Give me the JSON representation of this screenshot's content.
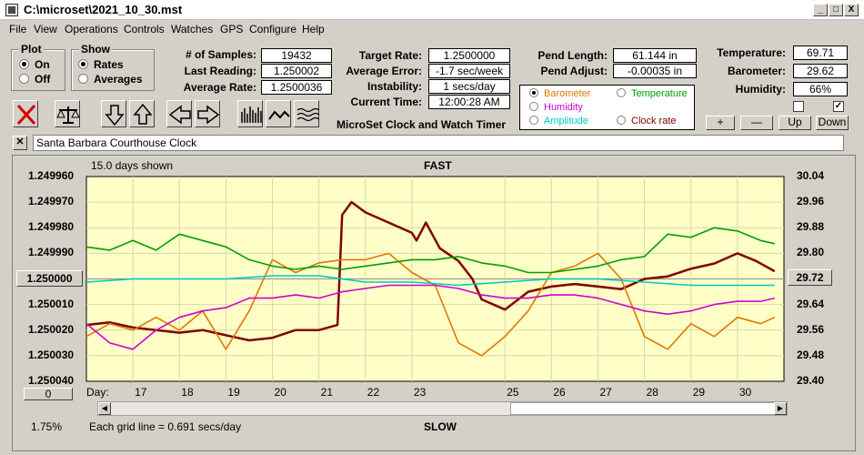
{
  "window": {
    "title": "C:\\microset\\2021_10_30.mst",
    "controls": [
      "_",
      "□",
      "X"
    ]
  },
  "menu": [
    "File",
    "View",
    "Operations",
    "Controls",
    "Watches",
    "GPS",
    "Configure",
    "Help"
  ],
  "plot_group": {
    "label": "Plot",
    "options": [
      "On",
      "Off"
    ],
    "selected": "On"
  },
  "show_group": {
    "label": "Show",
    "options": [
      "Rates",
      "Averages"
    ],
    "selected": "Rates"
  },
  "stats": {
    "samples_label": "# of Samples:",
    "samples": "19432",
    "last_reading_label": "Last Reading:",
    "last_reading": "1.250002",
    "average_rate_label": "Average Rate:",
    "average_rate": "1.2500036",
    "target_rate_label": "Target Rate:",
    "target_rate": "1.2500000",
    "average_error_label": "Average Error:",
    "average_error": "-1.7 sec/week",
    "instability_label": "Instability:",
    "instability": "1 secs/day",
    "current_time_label": "Current Time:",
    "current_time": "12:00:28 AM",
    "pend_length_label": "Pend Length:",
    "pend_length": "61.144 in",
    "pend_adjust_label": "Pend Adjust:",
    "pend_adjust": "-0.00035 in",
    "temperature_label": "Temperature:",
    "temperature": "69.71",
    "barometer_label": "Barometer:",
    "barometer": "29.62",
    "humidity_label": "Humidity:",
    "humidity": "66%"
  },
  "app_caption": "MicroSet Clock and Watch Timer",
  "overlay_options": [
    {
      "label": "Barometer",
      "color": "#e07800",
      "selected": true
    },
    {
      "label": "Temperature",
      "color": "#00a000",
      "selected": false
    },
    {
      "label": "Humidity",
      "color": "#d000d0",
      "selected": false
    },
    {
      "label": "Clock rate",
      "color": "#800000",
      "selected": false
    },
    {
      "label": "Amplitude",
      "color": "#00c8c8",
      "selected": false
    }
  ],
  "side_buttons": {
    "plus": "+",
    "minus": "—",
    "up": "Up",
    "down": "Down"
  },
  "checkboxes": [
    false,
    true
  ],
  "watch_name": "Santa Barbara Courthouse Clock",
  "chart_header": {
    "days_shown": "15.0 days shown",
    "top_label": "FAST",
    "bottom_label": "SLOW"
  },
  "footer": {
    "percent": "1.75%",
    "grid_note": "Each grid line = 0.691 secs/day",
    "zero_button": "0",
    "day_label": "Day:"
  },
  "chart_data": {
    "type": "line",
    "x_label": "Day:",
    "x_ticks": [
      "17",
      "18",
      "19",
      "20",
      "21",
      "22",
      "23",
      "25",
      "26",
      "27",
      "28",
      "29",
      "30"
    ],
    "x_range": [
      16,
      31
    ],
    "left_axis": {
      "ticks": [
        "1.249960",
        "1.249970",
        "1.249980",
        "1.249990",
        "1.250000",
        "1.250010",
        "1.250020",
        "1.250030",
        "1.250040"
      ],
      "range": [
        1.25004,
        1.24996
      ],
      "center_button": "1.250000"
    },
    "right_axis": {
      "ticks": [
        "30.04",
        "29.96",
        "29.88",
        "29.80",
        "29.72",
        "29.64",
        "29.56",
        "29.48",
        "29.40"
      ],
      "range": [
        29.4,
        30.04
      ],
      "center_button": "29.72"
    },
    "series": [
      {
        "name": "Clock rate",
        "color": "#800000",
        "axis": "left",
        "x": [
          16.0,
          16.5,
          17.0,
          17.5,
          18.0,
          18.5,
          19.0,
          19.5,
          20.0,
          20.5,
          21.0,
          21.4,
          21.5,
          21.7,
          22.0,
          22.5,
          23.0,
          23.1,
          23.3,
          23.6,
          24.0,
          24.3,
          24.5,
          25.0,
          25.5,
          26.0,
          26.5,
          27.0,
          27.5,
          28.0,
          28.5,
          29.0,
          29.5,
          30.0,
          30.4,
          30.8
        ],
        "y": [
          1.250018,
          1.250017,
          1.250019,
          1.25002,
          1.250021,
          1.25002,
          1.250022,
          1.250024,
          1.250023,
          1.25002,
          1.25002,
          1.250018,
          1.249975,
          1.24997,
          1.249974,
          1.249978,
          1.249982,
          1.249985,
          1.249978,
          1.249988,
          1.249993,
          1.25,
          1.250008,
          1.250012,
          1.250005,
          1.250003,
          1.250002,
          1.250003,
          1.250004,
          1.25,
          1.249999,
          1.249996,
          1.249994,
          1.24999,
          1.249993,
          1.249997
        ]
      },
      {
        "name": "Barometer",
        "color": "#e07800",
        "axis": "right",
        "x": [
          16.0,
          16.5,
          17.0,
          17.5,
          18.0,
          18.5,
          19.0,
          19.5,
          20.0,
          20.5,
          21.0,
          21.5,
          22.0,
          22.5,
          23.0,
          23.5,
          24.0,
          24.5,
          25.0,
          25.5,
          26.0,
          26.5,
          27.0,
          27.5,
          28.0,
          28.5,
          29.0,
          29.5,
          30.0,
          30.5,
          30.8
        ],
        "y": [
          29.54,
          29.58,
          29.56,
          29.6,
          29.56,
          29.62,
          29.5,
          29.62,
          29.78,
          29.74,
          29.77,
          29.78,
          29.78,
          29.8,
          29.74,
          29.7,
          29.52,
          29.48,
          29.54,
          29.62,
          29.74,
          29.76,
          29.8,
          29.72,
          29.54,
          29.5,
          29.58,
          29.54,
          29.6,
          29.58,
          29.6
        ]
      },
      {
        "name": "Temperature",
        "color": "#00a000",
        "axis": "right",
        "x": [
          16.0,
          16.5,
          17.0,
          17.5,
          18.0,
          18.5,
          19.0,
          19.5,
          20.0,
          20.5,
          21.0,
          21.5,
          22.0,
          22.5,
          23.0,
          23.5,
          24.0,
          24.5,
          25.0,
          25.5,
          26.0,
          26.5,
          27.0,
          27.5,
          28.0,
          28.5,
          29.0,
          29.5,
          30.0,
          30.5,
          30.8
        ],
        "y": [
          29.82,
          29.81,
          29.84,
          29.81,
          29.86,
          29.84,
          29.82,
          29.78,
          29.76,
          29.75,
          29.76,
          29.75,
          29.76,
          29.77,
          29.78,
          29.78,
          29.79,
          29.77,
          29.76,
          29.74,
          29.74,
          29.75,
          29.76,
          29.78,
          29.79,
          29.86,
          29.85,
          29.88,
          29.87,
          29.84,
          29.83
        ]
      },
      {
        "name": "Humidity",
        "color": "#d000d0",
        "axis": "right",
        "x": [
          16.0,
          16.5,
          17.0,
          17.5,
          18.0,
          18.5,
          19.0,
          19.5,
          20.0,
          20.5,
          21.0,
          21.5,
          22.0,
          22.5,
          23.0,
          23.5,
          24.0,
          24.5,
          25.0,
          25.5,
          26.0,
          26.5,
          27.0,
          27.5,
          28.0,
          28.5,
          29.0,
          29.5,
          30.0,
          30.5,
          30.8
        ],
        "y": [
          29.58,
          29.52,
          29.5,
          29.56,
          29.6,
          29.62,
          29.63,
          29.66,
          29.66,
          29.67,
          29.66,
          29.68,
          29.69,
          29.7,
          29.7,
          29.7,
          29.69,
          29.67,
          29.66,
          29.66,
          29.67,
          29.67,
          29.66,
          29.64,
          29.62,
          29.61,
          29.62,
          29.64,
          29.65,
          29.65,
          29.66
        ]
      },
      {
        "name": "Amplitude",
        "color": "#00c8c8",
        "axis": "right",
        "x": [
          16.0,
          17.0,
          18.0,
          19.0,
          20.0,
          21.0,
          22.0,
          23.0,
          24.0,
          25.0,
          26.0,
          27.0,
          28.0,
          29.0,
          30.0,
          30.8
        ],
        "y": [
          29.71,
          29.72,
          29.72,
          29.72,
          29.73,
          29.73,
          29.71,
          29.71,
          29.7,
          29.71,
          29.72,
          29.72,
          29.71,
          29.7,
          29.7,
          29.7
        ]
      }
    ]
  }
}
